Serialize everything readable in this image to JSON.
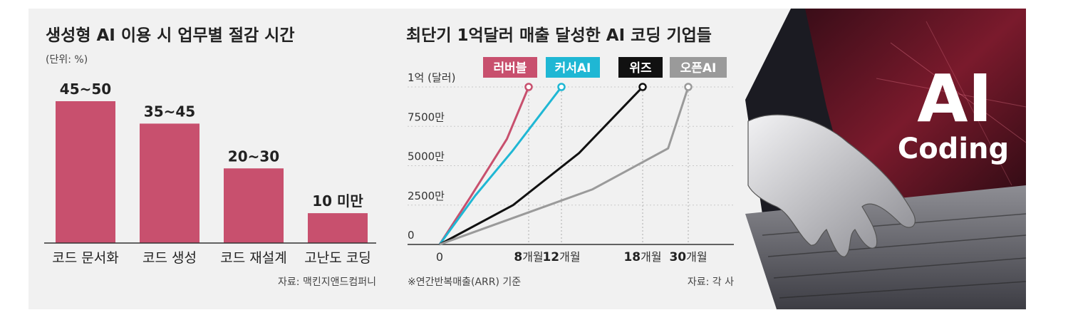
{
  "chart_data": [
    {
      "type": "bar",
      "title": "생성형 AI 이용 시 업무별 절감 시간",
      "unit_note": "(단위: %)",
      "categories": [
        "코드 문서화",
        "코드 생성",
        "코드 재설계",
        "고난도 코딩"
      ],
      "values": [
        47.5,
        40,
        25,
        10
      ],
      "value_labels": [
        "45~50",
        "35~45",
        "20~30",
        "10 미만"
      ],
      "ylim": [
        0,
        50
      ],
      "color": "#c8506e",
      "source": "자료: 맥킨지앤드컴퍼니"
    },
    {
      "type": "line",
      "title": "최단기 1억달러 매출 달성한 AI 코딩 기업들",
      "y_ticks": [
        {
          "value": 0,
          "label": "0"
        },
        {
          "value": 2500,
          "label": "2500만"
        },
        {
          "value": 5000,
          "label": "5000만"
        },
        {
          "value": 7500,
          "label": "7500만"
        },
        {
          "value": 10000,
          "label": "1억 (달러)"
        }
      ],
      "ylim": [
        0,
        10000
      ],
      "x_ticks": [
        {
          "value": 0,
          "num": "0",
          "unit": ""
        },
        {
          "value": 8,
          "num": "8",
          "unit": "개월"
        },
        {
          "value": 12,
          "num": "12",
          "unit": "개월"
        },
        {
          "value": 18,
          "num": "18",
          "unit": "개월"
        },
        {
          "value": 30,
          "num": "30",
          "unit": "개월"
        }
      ],
      "series": [
        {
          "name": "러버블",
          "color": "#c8506e",
          "x": [
            0,
            2.76,
            6.05,
            8
          ],
          "y": [
            0,
            3000,
            6700,
            10000
          ]
        },
        {
          "name": "커서AI",
          "color": "#1fb7d4",
          "x": [
            0,
            3.2,
            6.5,
            12
          ],
          "y": [
            0,
            3100,
            5900,
            10000
          ]
        },
        {
          "name": "위즈",
          "color": "#111111",
          "x": [
            0,
            6.6,
            13.3,
            18
          ],
          "y": [
            0,
            2500,
            5800,
            10000
          ]
        },
        {
          "name": "오픈AI",
          "color": "#9a9a9a",
          "x": [
            0,
            14.3,
            24.7,
            30
          ],
          "y": [
            0,
            3500,
            6100,
            10000
          ]
        }
      ],
      "note": "※연간반복매출(ARR) 기준",
      "source": "자료: 각 사"
    }
  ],
  "image": {
    "headline": "AI",
    "subline": "Coding"
  }
}
